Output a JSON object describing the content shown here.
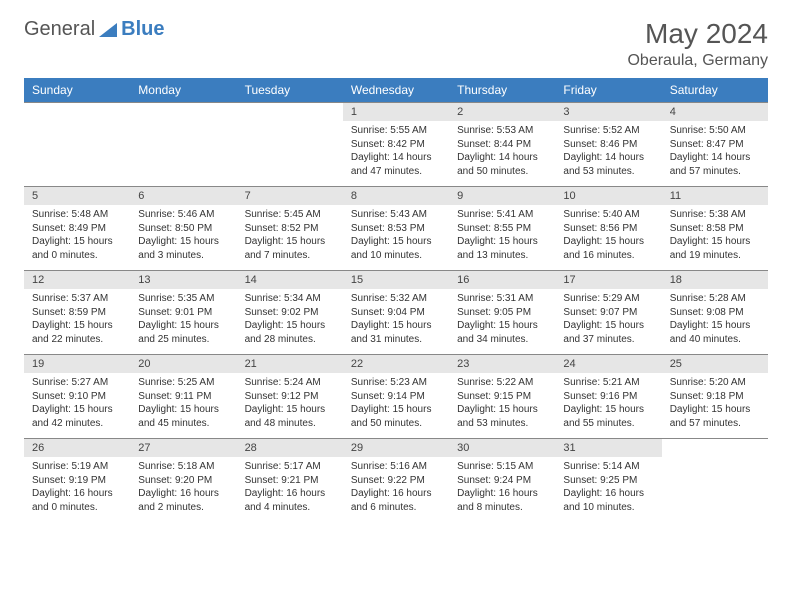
{
  "logo": {
    "text1": "General",
    "text2": "Blue"
  },
  "title": "May 2024",
  "location": "Oberaula, Germany",
  "colors": {
    "header_bg": "#3b7dbf",
    "header_text": "#ffffff",
    "daynum_bg": "#e6e6e6",
    "border": "#888888",
    "text": "#333333"
  },
  "dayHeaders": [
    "Sunday",
    "Monday",
    "Tuesday",
    "Wednesday",
    "Thursday",
    "Friday",
    "Saturday"
  ],
  "weeks": [
    {
      "nums": [
        "",
        "",
        "",
        "1",
        "2",
        "3",
        "4"
      ],
      "cells": [
        "",
        "",
        "",
        "Sunrise: 5:55 AM\nSunset: 8:42 PM\nDaylight: 14 hours and 47 minutes.",
        "Sunrise: 5:53 AM\nSunset: 8:44 PM\nDaylight: 14 hours and 50 minutes.",
        "Sunrise: 5:52 AM\nSunset: 8:46 PM\nDaylight: 14 hours and 53 minutes.",
        "Sunrise: 5:50 AM\nSunset: 8:47 PM\nDaylight: 14 hours and 57 minutes."
      ]
    },
    {
      "nums": [
        "5",
        "6",
        "7",
        "8",
        "9",
        "10",
        "11"
      ],
      "cells": [
        "Sunrise: 5:48 AM\nSunset: 8:49 PM\nDaylight: 15 hours and 0 minutes.",
        "Sunrise: 5:46 AM\nSunset: 8:50 PM\nDaylight: 15 hours and 3 minutes.",
        "Sunrise: 5:45 AM\nSunset: 8:52 PM\nDaylight: 15 hours and 7 minutes.",
        "Sunrise: 5:43 AM\nSunset: 8:53 PM\nDaylight: 15 hours and 10 minutes.",
        "Sunrise: 5:41 AM\nSunset: 8:55 PM\nDaylight: 15 hours and 13 minutes.",
        "Sunrise: 5:40 AM\nSunset: 8:56 PM\nDaylight: 15 hours and 16 minutes.",
        "Sunrise: 5:38 AM\nSunset: 8:58 PM\nDaylight: 15 hours and 19 minutes."
      ]
    },
    {
      "nums": [
        "12",
        "13",
        "14",
        "15",
        "16",
        "17",
        "18"
      ],
      "cells": [
        "Sunrise: 5:37 AM\nSunset: 8:59 PM\nDaylight: 15 hours and 22 minutes.",
        "Sunrise: 5:35 AM\nSunset: 9:01 PM\nDaylight: 15 hours and 25 minutes.",
        "Sunrise: 5:34 AM\nSunset: 9:02 PM\nDaylight: 15 hours and 28 minutes.",
        "Sunrise: 5:32 AM\nSunset: 9:04 PM\nDaylight: 15 hours and 31 minutes.",
        "Sunrise: 5:31 AM\nSunset: 9:05 PM\nDaylight: 15 hours and 34 minutes.",
        "Sunrise: 5:29 AM\nSunset: 9:07 PM\nDaylight: 15 hours and 37 minutes.",
        "Sunrise: 5:28 AM\nSunset: 9:08 PM\nDaylight: 15 hours and 40 minutes."
      ]
    },
    {
      "nums": [
        "19",
        "20",
        "21",
        "22",
        "23",
        "24",
        "25"
      ],
      "cells": [
        "Sunrise: 5:27 AM\nSunset: 9:10 PM\nDaylight: 15 hours and 42 minutes.",
        "Sunrise: 5:25 AM\nSunset: 9:11 PM\nDaylight: 15 hours and 45 minutes.",
        "Sunrise: 5:24 AM\nSunset: 9:12 PM\nDaylight: 15 hours and 48 minutes.",
        "Sunrise: 5:23 AM\nSunset: 9:14 PM\nDaylight: 15 hours and 50 minutes.",
        "Sunrise: 5:22 AM\nSunset: 9:15 PM\nDaylight: 15 hours and 53 minutes.",
        "Sunrise: 5:21 AM\nSunset: 9:16 PM\nDaylight: 15 hours and 55 minutes.",
        "Sunrise: 5:20 AM\nSunset: 9:18 PM\nDaylight: 15 hours and 57 minutes."
      ]
    },
    {
      "nums": [
        "26",
        "27",
        "28",
        "29",
        "30",
        "31",
        ""
      ],
      "cells": [
        "Sunrise: 5:19 AM\nSunset: 9:19 PM\nDaylight: 16 hours and 0 minutes.",
        "Sunrise: 5:18 AM\nSunset: 9:20 PM\nDaylight: 16 hours and 2 minutes.",
        "Sunrise: 5:17 AM\nSunset: 9:21 PM\nDaylight: 16 hours and 4 minutes.",
        "Sunrise: 5:16 AM\nSunset: 9:22 PM\nDaylight: 16 hours and 6 minutes.",
        "Sunrise: 5:15 AM\nSunset: 9:24 PM\nDaylight: 16 hours and 8 minutes.",
        "Sunrise: 5:14 AM\nSunset: 9:25 PM\nDaylight: 16 hours and 10 minutes.",
        ""
      ]
    }
  ]
}
